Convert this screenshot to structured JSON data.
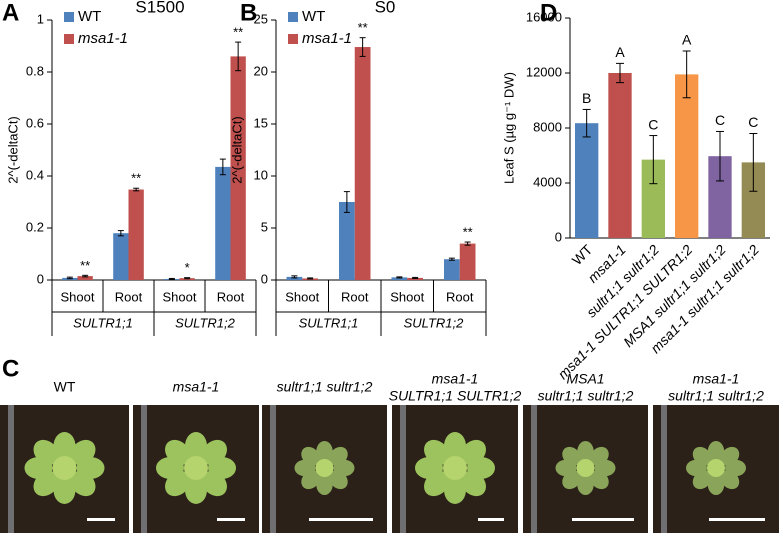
{
  "chart_data": [
    {
      "type": "bar",
      "panel": "A",
      "title": "S1500",
      "y_label": "2^(-deltaCt)",
      "categories": [
        "Shoot",
        "Root",
        "Shoot",
        "Root"
      ],
      "groups": [
        "SULTR1;1",
        "SULTR1;2"
      ],
      "series": [
        {
          "name": "WT",
          "color": "#4f81bd",
          "values": [
            0.008,
            0.18,
            0.004,
            0.435
          ],
          "errors": [
            0.003,
            0.01,
            0.002,
            0.03
          ]
        },
        {
          "name": "msa1-1",
          "color": "#c0504d",
          "values": [
            0.015,
            0.348,
            0.007,
            0.86
          ],
          "errors": [
            0.003,
            0.005,
            0.002,
            0.055
          ],
          "significance": [
            "**",
            "**",
            "*",
            "**"
          ]
        }
      ],
      "ylim": [
        0,
        1
      ],
      "yticks": [
        0,
        0.2,
        0.4,
        0.6,
        0.8,
        1
      ]
    },
    {
      "type": "bar",
      "panel": "B",
      "title": "S0",
      "y_label": "2^(-deltaCt)",
      "categories": [
        "Shoot",
        "Root",
        "Shoot",
        "Root"
      ],
      "groups": [
        "SULTR1;1",
        "SULTR1;2"
      ],
      "series": [
        {
          "name": "WT",
          "color": "#4f81bd",
          "values": [
            0.3,
            7.5,
            0.25,
            2.0
          ],
          "errors": [
            0.1,
            1.0,
            0.05,
            0.1
          ]
        },
        {
          "name": "msa1-1",
          "color": "#c0504d",
          "values": [
            0.15,
            22.4,
            0.2,
            3.5
          ],
          "errors": [
            0.05,
            0.9,
            0.05,
            0.15
          ],
          "significance": [
            null,
            "**",
            null,
            "**"
          ]
        }
      ],
      "ylim": [
        0,
        25
      ],
      "yticks": [
        0,
        5,
        10,
        15,
        20,
        25
      ]
    },
    {
      "type": "bar",
      "panel": "D",
      "y_label": "Leaf S (µg g⁻¹ DW)",
      "categories": [
        "WT",
        "msa1-1",
        "sultr1;1 sultr1;2",
        "msa1-1 SULTR1;1 SULTR1;2",
        "MSA1 sultr1;1 sultr1;2",
        "msa1-1 sultr1;1 sultr1;2"
      ],
      "values": [
        8350,
        12000,
        5700,
        11900,
        5950,
        5500
      ],
      "errors": [
        1000,
        700,
        1750,
        1700,
        1800,
        2100
      ],
      "colors": [
        "#4f81bd",
        "#c0504d",
        "#9bbb59",
        "#f79646",
        "#8064a2",
        "#948a54"
      ],
      "letters": [
        "B",
        "A",
        "C",
        "A",
        "C",
        "C"
      ],
      "ylim": [
        0,
        16000
      ],
      "yticks": [
        0,
        4000,
        8000,
        12000,
        16000
      ]
    }
  ],
  "photos": {
    "panel": "C",
    "items": [
      {
        "label": [
          "WT"
        ]
      },
      {
        "label": [
          "msa1-1"
        ]
      },
      {
        "label": [
          "sultr1;1 sultr1;2"
        ]
      },
      {
        "label": [
          "msa1-1",
          "SULTR1;1 SULTR1;2"
        ]
      },
      {
        "label": [
          "MSA1",
          "sultr1;1 sultr1;2"
        ]
      },
      {
        "label": [
          "msa1-1",
          "sultr1;1 sultr1;2"
        ]
      }
    ]
  }
}
